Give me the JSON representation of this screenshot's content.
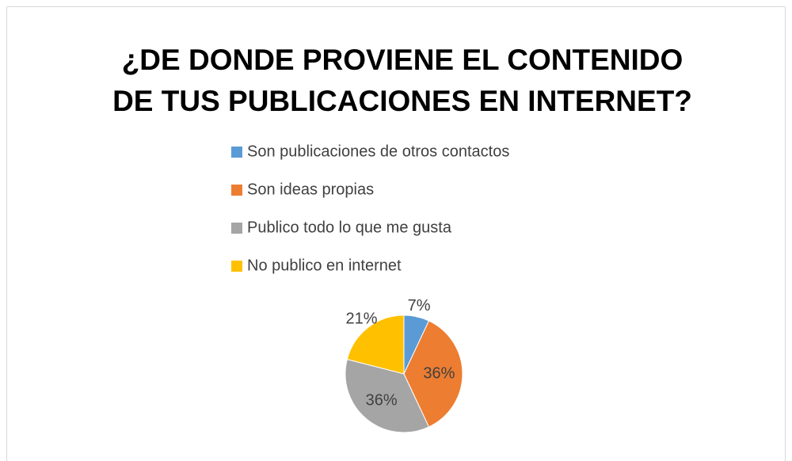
{
  "chart_data": {
    "type": "pie",
    "title": [
      "¿DE DONDE PROVIENE EL CONTENIDO",
      "DE TUS PUBLICACIONES EN INTERNET?"
    ],
    "categories": [
      "Son  publicaciones de  otros  contactos",
      "Son  ideas  propias",
      "Publico  todo  lo que  me  gusta",
      "No  publico  en  internet"
    ],
    "values": [
      7,
      36,
      36,
      21
    ],
    "value_labels": [
      "7%",
      "36%",
      "36%",
      "21%"
    ],
    "colors": [
      "#5b9bd5",
      "#ed7d31",
      "#a5a5a5",
      "#ffc000"
    ]
  }
}
